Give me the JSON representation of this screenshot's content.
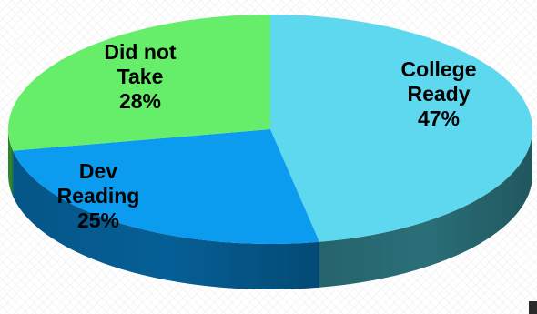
{
  "chart_data": {
    "type": "pie",
    "style": "3d",
    "slices": [
      {
        "label_lines": [
          "College",
          "Ready"
        ],
        "percent_label": "47%",
        "value": 47,
        "color": "#5dd8ee",
        "side_color": "#2a6f78"
      },
      {
        "label_lines": [
          "Dev",
          "Reading"
        ],
        "percent_label": "25%",
        "value": 25,
        "color": "#0b9cf0",
        "side_color": "#055f96"
      },
      {
        "label_lines": [
          "Did not",
          "Take"
        ],
        "percent_label": "28%",
        "value": 28,
        "color": "#66ee6a",
        "side_color": "#2f8a32"
      }
    ]
  }
}
